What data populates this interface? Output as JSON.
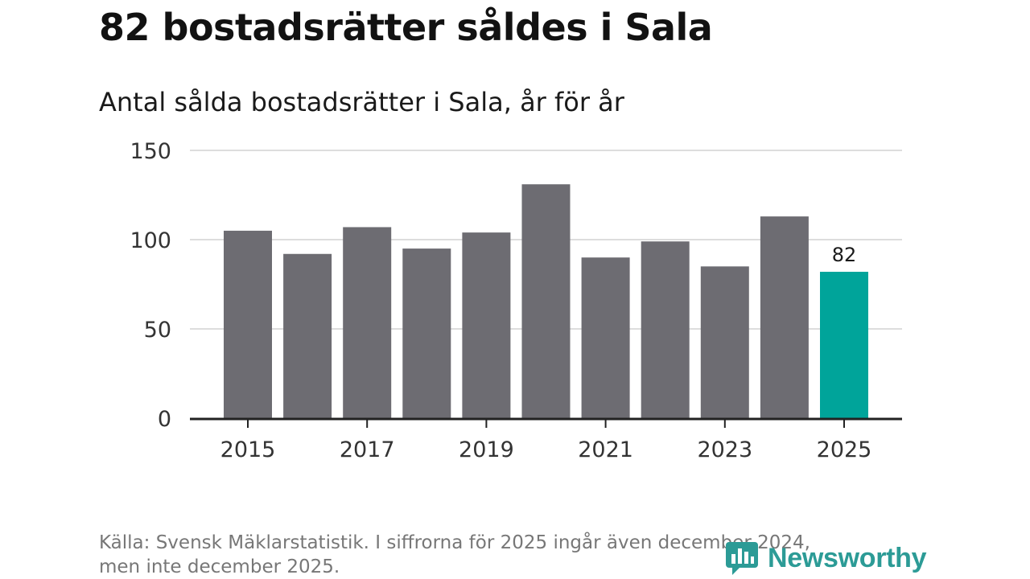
{
  "title": "82 bostadsrätter såldes i Sala",
  "subtitle": "Antal sålda bostadsrätter i Sala, år för år",
  "footer": {
    "line1": "Källa: Svensk Mäklarstatistik. I siffrorna för 2025 ingår även december 2024,",
    "line2": "men inte december 2025."
  },
  "brand": {
    "name": "Newsworthy",
    "color": "#2c9b96"
  },
  "colors": {
    "bar": "#6d6c72",
    "highlight": "#00a49a",
    "grid": "#dddddd",
    "axis": "#222222"
  },
  "chart_data": {
    "type": "bar",
    "title": "Antal sålda bostadsrätter i Sala, år för år",
    "xlabel": "",
    "ylabel": "",
    "categories": [
      "2015",
      "2016",
      "2017",
      "2018",
      "2019",
      "2020",
      "2021",
      "2022",
      "2023",
      "2024",
      "2025"
    ],
    "values": [
      105,
      92,
      107,
      95,
      104,
      131,
      90,
      99,
      85,
      113,
      82
    ],
    "highlight_index": 10,
    "highlight_label": "82",
    "ylim": [
      0,
      150
    ],
    "y_ticks": [
      0,
      50,
      100,
      150
    ],
    "x_tick_labels": [
      "2015",
      "2017",
      "2019",
      "2021",
      "2023",
      "2025"
    ],
    "grid": true
  }
}
